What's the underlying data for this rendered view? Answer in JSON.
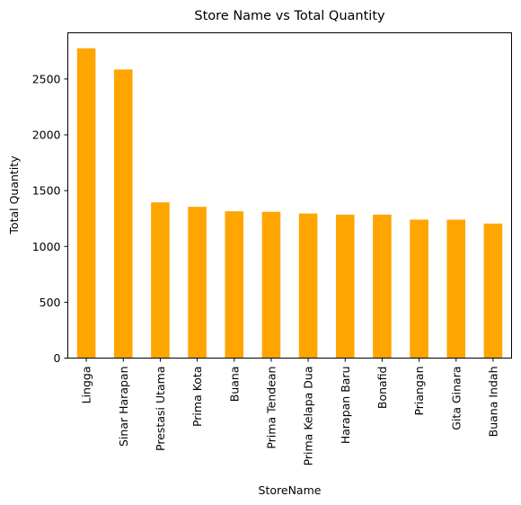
{
  "chart_data": {
    "type": "bar",
    "title": "Store Name vs Total Quantity",
    "xlabel": "StoreName",
    "ylabel": "Total Quantity",
    "categories": [
      "Lingga",
      "Sinar Harapan",
      "Prestasi Utama",
      "Prima Kota",
      "Buana",
      "Prima Tendean",
      "Prima Kelapa Dua",
      "Harapan Baru",
      "Bonafid",
      "Priangan",
      "Gita Ginara",
      "Buana Indah"
    ],
    "values": [
      2775,
      2585,
      1395,
      1355,
      1315,
      1310,
      1295,
      1285,
      1285,
      1240,
      1240,
      1205
    ],
    "ylim": [
      0,
      2913.75
    ],
    "yticks": [
      0,
      500,
      1000,
      1500,
      2000,
      2500
    ],
    "bar_color": "#FFA500",
    "grid": false,
    "legend": "none"
  }
}
